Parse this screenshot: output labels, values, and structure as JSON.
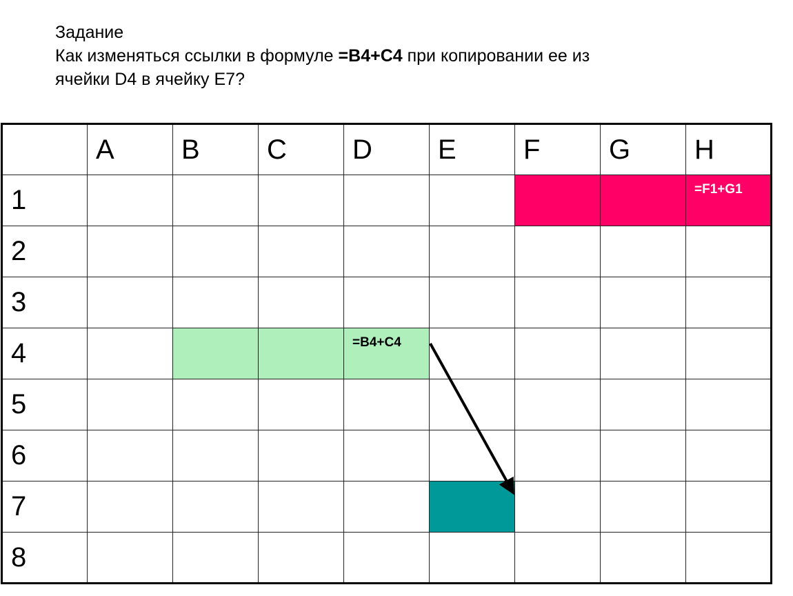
{
  "task": {
    "heading": "Задание",
    "line1_pre": "Как изменяться ссылки в формуле ",
    "line1_formula": "=B4+C4",
    "line1_post": " при копировании ее из",
    "line2": "ячейки D4 в ячейку E7?"
  },
  "sheet": {
    "columns": [
      "A",
      "B",
      "C",
      "D",
      "E",
      "F",
      "G",
      "H"
    ],
    "rows": [
      "1",
      "2",
      "3",
      "4",
      "5",
      "6",
      "7",
      "8"
    ],
    "cells": {
      "H1": {
        "text": "=F1+G1",
        "fill": "#FF0066",
        "color": "#FFFFFF"
      },
      "F1": {
        "fill": "#FF0066"
      },
      "G1": {
        "fill": "#FF0066"
      },
      "B4": {
        "fill": "#AEEFBB"
      },
      "C4": {
        "fill": "#AEEFBB"
      },
      "D4": {
        "text": "=B4+C4",
        "fill": "#AEEFBB",
        "color": "#000000"
      },
      "E7": {
        "fill": "#009999"
      }
    },
    "arrow": {
      "from": "D4",
      "to": "E7",
      "color": "#000000"
    }
  }
}
